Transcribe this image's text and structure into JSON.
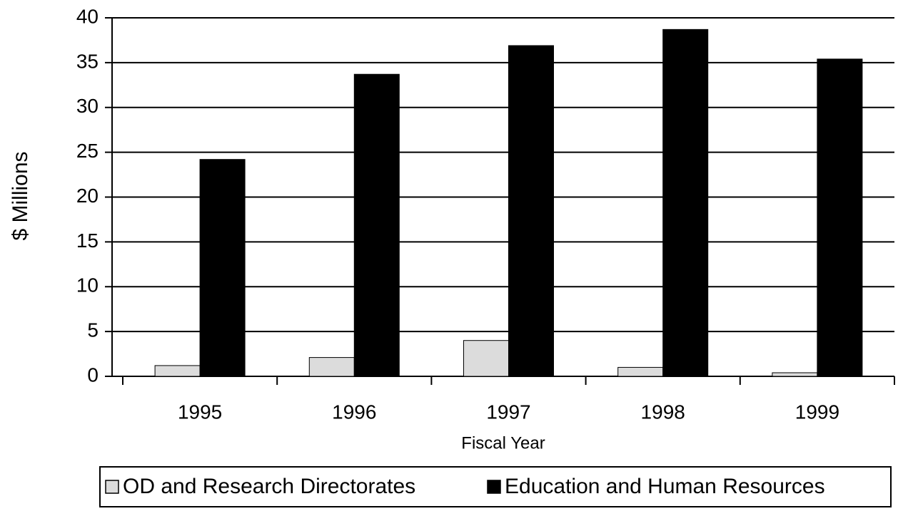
{
  "chart_data": {
    "type": "bar",
    "x_label": "Fiscal Year",
    "y_label": "$ Millions",
    "categories": [
      "1995",
      "1996",
      "1997",
      "1998",
      "1999"
    ],
    "series": [
      {
        "name": "OD and Research Directorates",
        "color": "#dcdcdc",
        "values": [
          1.2,
          2.1,
          4.0,
          1.0,
          0.4
        ]
      },
      {
        "name": "Education and Human Resources",
        "color": "#000000",
        "values": [
          24.2,
          33.7,
          36.9,
          38.7,
          35.4
        ]
      }
    ],
    "ylim": [
      0,
      40
    ],
    "yticks": [
      0,
      5,
      10,
      15,
      20,
      25,
      30,
      35,
      40
    ],
    "grid": true,
    "legend": "bottom"
  }
}
